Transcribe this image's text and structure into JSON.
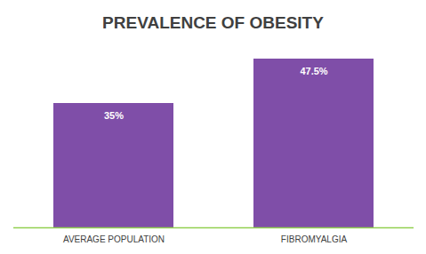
{
  "chart_data": {
    "type": "bar",
    "title": "PREVALENCE OF OBESITY",
    "categories": [
      "AVERAGE POPULATION",
      "FIBROMYALGIA"
    ],
    "values": [
      35,
      47.5
    ],
    "value_labels": [
      "35%",
      "47.5%"
    ],
    "color": "#7f4ea8",
    "ylim": [
      0,
      50
    ],
    "data_labels": true,
    "tick_labels": "x",
    "grid": false
  }
}
